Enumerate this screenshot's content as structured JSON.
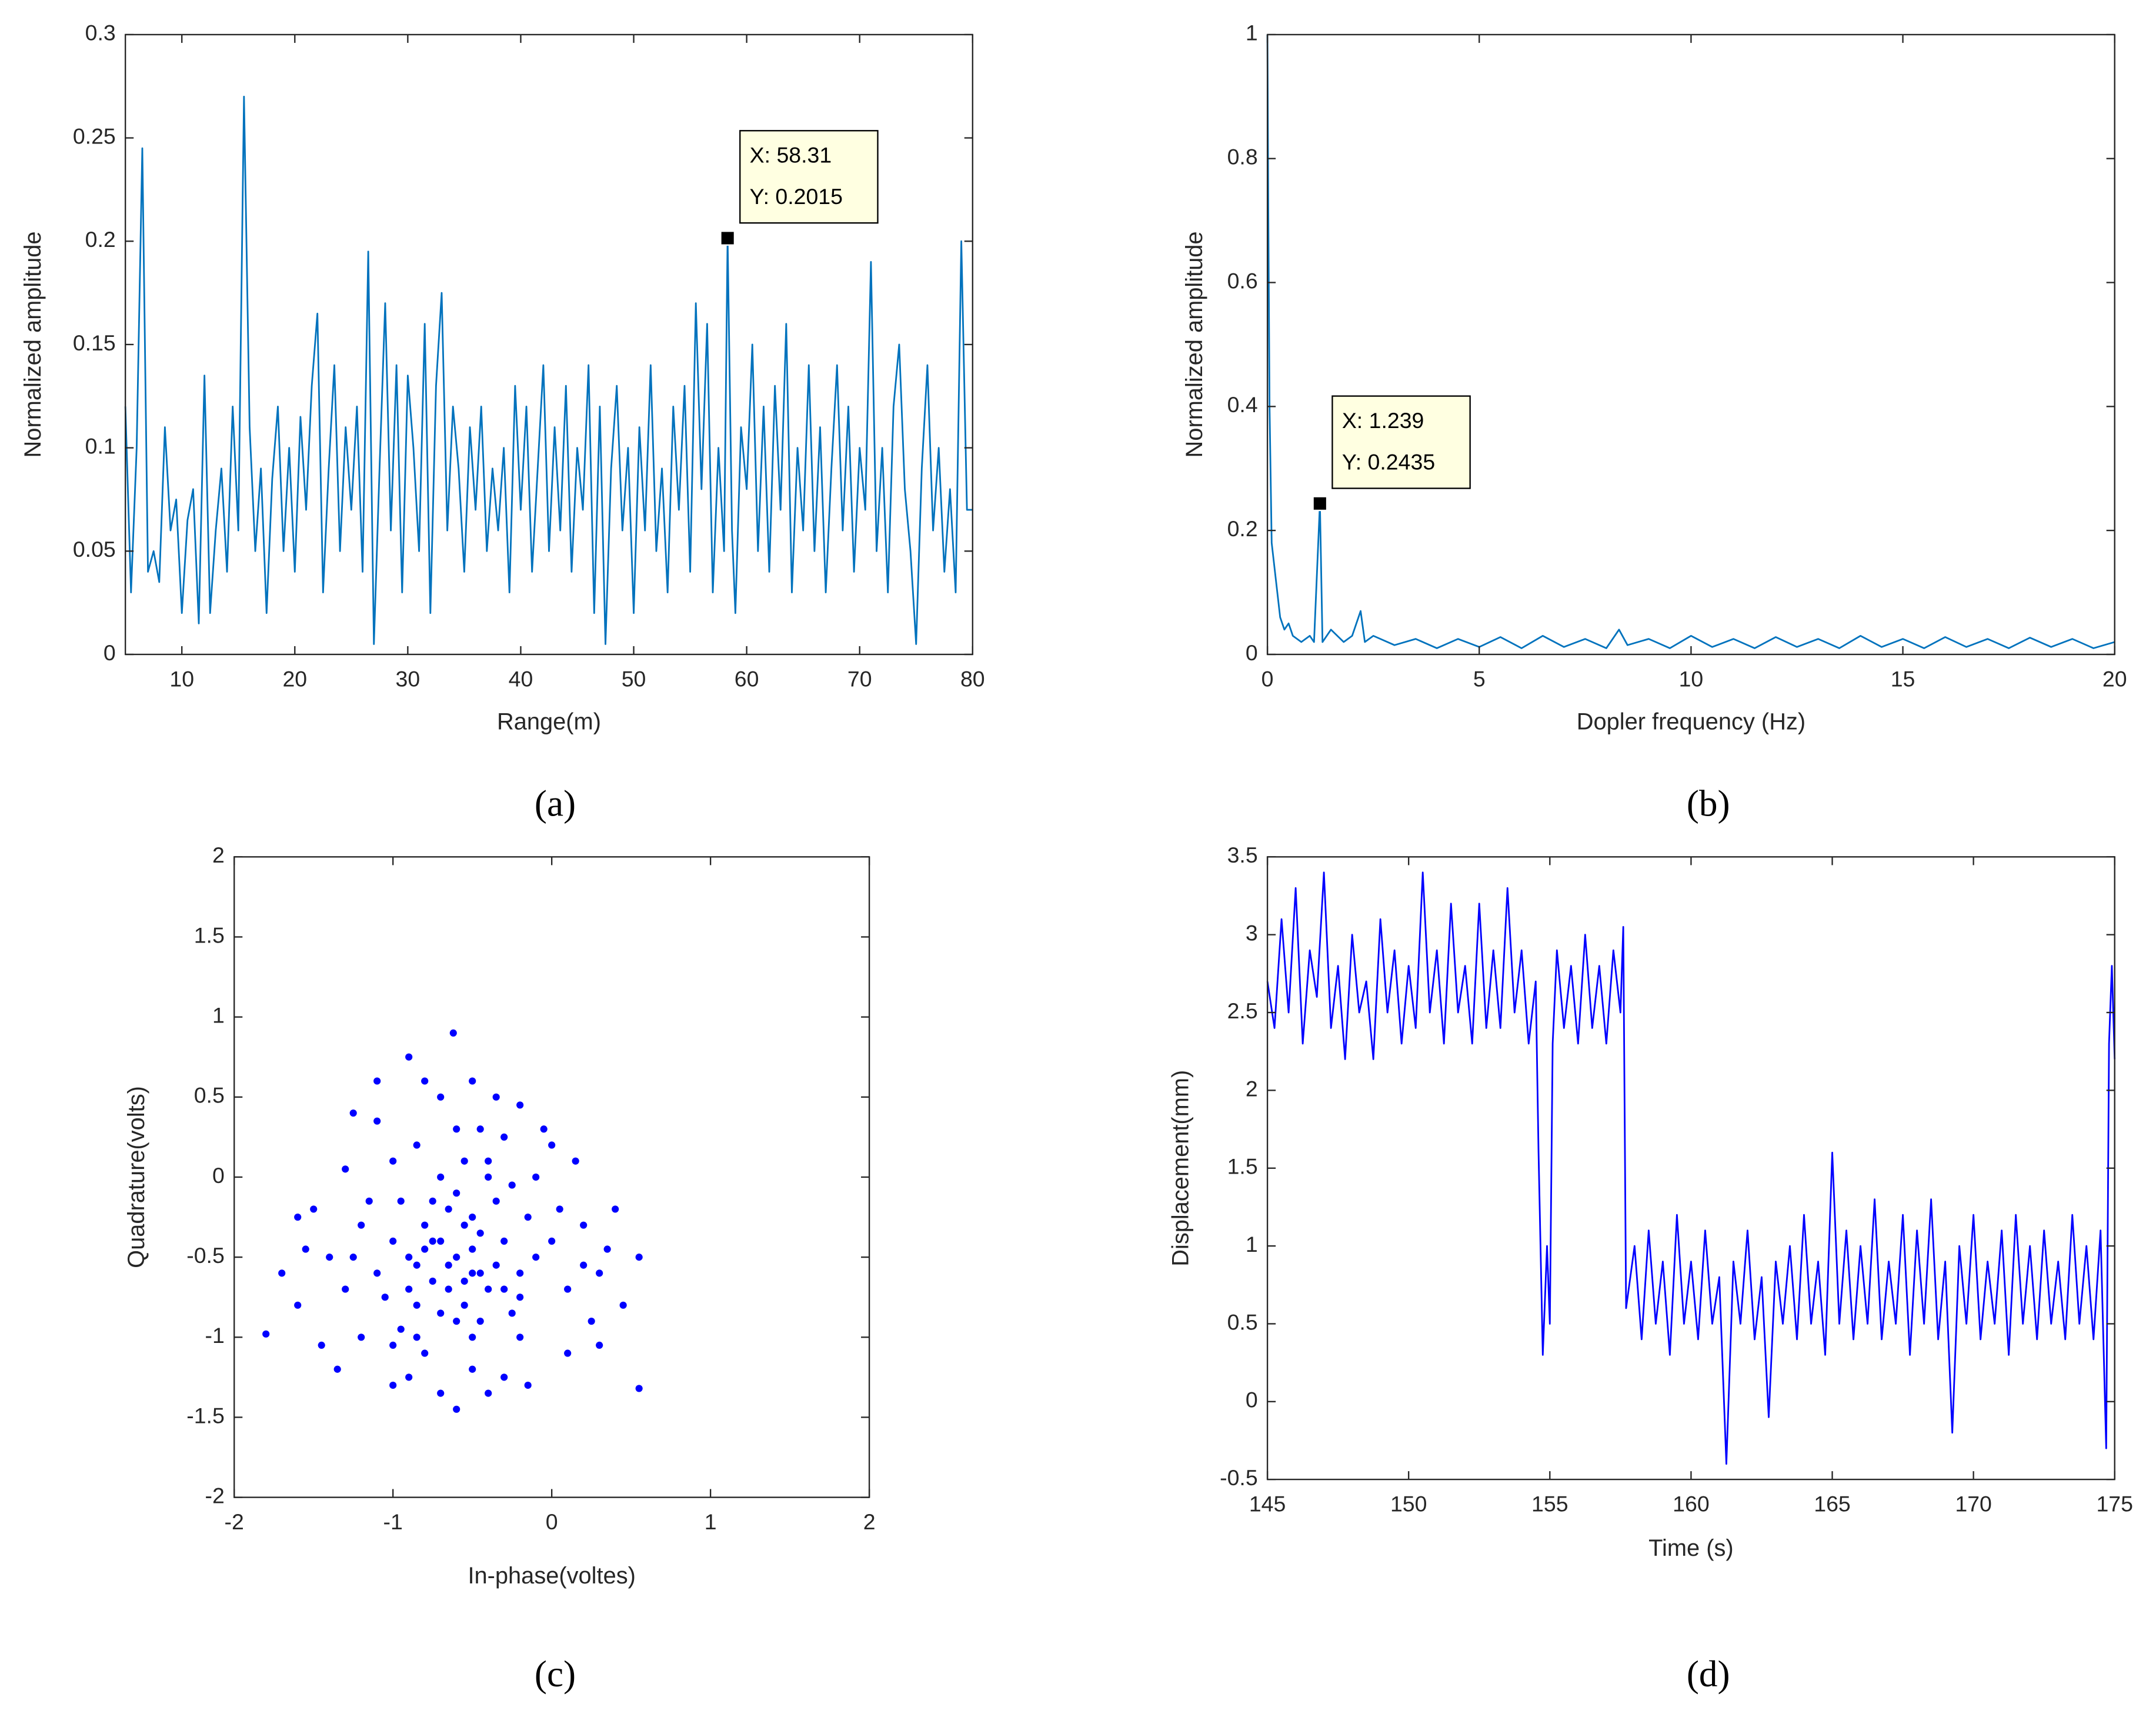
{
  "chart_data": [
    {
      "type": "line",
      "caption": "(a)",
      "xlabel": "Range(m)",
      "ylabel": "Normalized amplitude",
      "color": "#0072bd",
      "xlim": [
        5,
        80
      ],
      "ylim": [
        0,
        0.3
      ],
      "xticks": [
        10,
        20,
        30,
        40,
        50,
        60,
        70,
        80
      ],
      "yticks": [
        0,
        0.05,
        0.1,
        0.15,
        0.2,
        0.25,
        0.3
      ],
      "x": [
        5,
        5.5,
        6,
        6.5,
        7,
        7.5,
        8,
        8.5,
        9,
        9.5,
        10,
        10.5,
        11,
        11.5,
        12,
        12.5,
        13,
        13.5,
        14,
        14.5,
        15,
        15.5,
        16,
        16.5,
        17,
        17.5,
        18,
        18.5,
        19,
        19.5,
        20,
        20.5,
        21,
        21.5,
        22,
        22.5,
        23,
        23.5,
        24,
        24.5,
        25,
        25.5,
        26,
        26.5,
        27,
        27.5,
        28,
        28.5,
        29,
        29.5,
        30,
        30.5,
        31,
        31.5,
        32,
        32.5,
        33,
        33.5,
        34,
        34.5,
        35,
        35.5,
        36,
        36.5,
        37,
        37.5,
        38,
        38.5,
        39,
        39.5,
        40,
        40.5,
        41,
        41.5,
        42,
        42.5,
        43,
        43.5,
        44,
        44.5,
        45,
        45.5,
        46,
        46.5,
        47,
        47.5,
        48,
        48.5,
        49,
        49.5,
        50,
        50.5,
        51,
        51.5,
        52,
        52.5,
        53,
        53.5,
        54,
        54.5,
        55,
        55.5,
        56,
        56.5,
        57,
        57.5,
        58,
        58.31,
        58.7,
        59,
        59.5,
        60,
        60.5,
        61,
        61.5,
        62,
        62.5,
        63,
        63.5,
        64,
        64.5,
        65,
        65.5,
        66,
        66.5,
        67,
        67.5,
        68,
        68.5,
        69,
        69.5,
        70,
        70.5,
        71,
        71.5,
        72,
        72.5,
        73,
        73.5,
        74,
        74.5,
        75,
        75.5,
        76,
        76.5,
        77,
        77.5,
        78,
        78.5,
        79,
        79.5,
        80
      ],
      "values": [
        0.12,
        0.03,
        0.1,
        0.245,
        0.04,
        0.05,
        0.035,
        0.11,
        0.06,
        0.075,
        0.02,
        0.065,
        0.08,
        0.015,
        0.135,
        0.02,
        0.06,
        0.09,
        0.04,
        0.12,
        0.06,
        0.27,
        0.11,
        0.05,
        0.09,
        0.02,
        0.085,
        0.12,
        0.05,
        0.1,
        0.04,
        0.115,
        0.07,
        0.13,
        0.165,
        0.03,
        0.09,
        0.14,
        0.05,
        0.11,
        0.07,
        0.12,
        0.04,
        0.195,
        0.005,
        0.09,
        0.17,
        0.06,
        0.14,
        0.03,
        0.135,
        0.1,
        0.05,
        0.16,
        0.02,
        0.13,
        0.175,
        0.06,
        0.12,
        0.09,
        0.04,
        0.11,
        0.07,
        0.12,
        0.05,
        0.09,
        0.06,
        0.1,
        0.03,
        0.13,
        0.07,
        0.12,
        0.04,
        0.09,
        0.14,
        0.05,
        0.11,
        0.06,
        0.13,
        0.04,
        0.1,
        0.07,
        0.14,
        0.02,
        0.12,
        0.005,
        0.09,
        0.13,
        0.06,
        0.1,
        0.02,
        0.11,
        0.06,
        0.14,
        0.05,
        0.09,
        0.03,
        0.12,
        0.07,
        0.13,
        0.04,
        0.17,
        0.08,
        0.16,
        0.03,
        0.1,
        0.05,
        0.2015,
        0.06,
        0.02,
        0.11,
        0.08,
        0.15,
        0.05,
        0.12,
        0.04,
        0.13,
        0.07,
        0.16,
        0.03,
        0.1,
        0.06,
        0.14,
        0.05,
        0.11,
        0.03,
        0.09,
        0.14,
        0.06,
        0.12,
        0.04,
        0.1,
        0.07,
        0.19,
        0.05,
        0.1,
        0.03,
        0.12,
        0.15,
        0.08,
        0.05,
        0.005,
        0.09,
        0.14,
        0.06,
        0.1,
        0.04,
        0.08,
        0.03,
        0.2,
        0.07,
        0.07
      ],
      "datatip": {
        "x": 58.31,
        "y": 0.2015,
        "labels": [
          "X: 58.31",
          "Y: 0.2015"
        ]
      }
    },
    {
      "type": "line",
      "caption": "(b)",
      "xlabel": "Dopler frequency (Hz)",
      "ylabel": "Normalized amplitude",
      "color": "#0072bd",
      "xlim": [
        0,
        20
      ],
      "ylim": [
        0,
        1
      ],
      "xticks": [
        0,
        5,
        10,
        15,
        20
      ],
      "yticks": [
        0,
        0.2,
        0.4,
        0.6,
        0.8,
        1
      ],
      "x": [
        0,
        0.02,
        0.05,
        0.1,
        0.2,
        0.3,
        0.4,
        0.5,
        0.6,
        0.8,
        1.0,
        1.1,
        1.239,
        1.3,
        1.5,
        1.8,
        2.0,
        2.2,
        2.3,
        2.5,
        3,
        3.5,
        4,
        4.5,
        5,
        5.5,
        6,
        6.5,
        7,
        7.5,
        8,
        8.3,
        8.5,
        9,
        9.5,
        10,
        10.5,
        11,
        11.5,
        12,
        12.5,
        13,
        13.5,
        14,
        14.5,
        15,
        15.5,
        16,
        16.5,
        17,
        17.5,
        18,
        18.5,
        19,
        19.5,
        20
      ],
      "values": [
        1,
        0.72,
        0.4,
        0.18,
        0.12,
        0.06,
        0.04,
        0.05,
        0.03,
        0.02,
        0.03,
        0.02,
        0.2435,
        0.02,
        0.04,
        0.02,
        0.03,
        0.07,
        0.02,
        0.03,
        0.015,
        0.025,
        0.01,
        0.025,
        0.012,
        0.028,
        0.01,
        0.03,
        0.012,
        0.025,
        0.01,
        0.04,
        0.015,
        0.025,
        0.01,
        0.03,
        0.012,
        0.025,
        0.01,
        0.028,
        0.012,
        0.025,
        0.01,
        0.03,
        0.012,
        0.025,
        0.01,
        0.028,
        0.012,
        0.025,
        0.01,
        0.027,
        0.012,
        0.025,
        0.01,
        0.02
      ],
      "datatip": {
        "x": 1.239,
        "y": 0.2435,
        "labels": [
          "X: 1.239",
          "Y: 0.2435"
        ]
      }
    },
    {
      "type": "scatter",
      "caption": "(c)",
      "xlabel": "In-phase(voltes)",
      "ylabel": "Quadrature(volts)",
      "color": "#0000ff",
      "xlim": [
        -2,
        2
      ],
      "ylim": [
        -2,
        2
      ],
      "xticks": [
        -2,
        -1,
        0,
        1,
        2
      ],
      "yticks": [
        -2,
        -1.5,
        -1,
        -0.5,
        0,
        0.5,
        1,
        1.5,
        2
      ],
      "x": [
        -0.6,
        -0.7,
        -0.5,
        -0.8,
        -0.4,
        -0.65,
        -0.55,
        -0.9,
        -0.3,
        -0.75,
        -0.45,
        -1.0,
        -0.2,
        -0.85,
        -0.35,
        -0.7,
        -0.5,
        -1.1,
        -0.1,
        -0.6,
        -0.95,
        -0.25,
        -1.2,
        0.0,
        -0.8,
        -0.4,
        -1.3,
        0.1,
        -0.6,
        -0.5,
        -1.0,
        -0.2,
        -1.4,
        0.2,
        -0.9,
        -0.3,
        -1.5,
        0.3,
        -0.7,
        -0.4,
        -1.2,
        -0.1,
        -1.1,
        0.1,
        -1.6,
        0.4,
        -0.8,
        -0.6,
        -1.3,
        -0.15,
        -1.45,
        0.25,
        -0.5,
        -1.0,
        0.0,
        -1.55,
        0.35,
        -0.9,
        -0.3,
        -1.25,
        0.15,
        -1.7,
        0.45,
        -0.62,
        -0.7,
        -1.1,
        -0.05,
        -1.35,
        0.3,
        -0.35,
        -1.8,
        0.55,
        -1.6,
        -0.45,
        -0.95,
        -0.25,
        -0.55,
        -0.65,
        -0.85,
        -0.35,
        -0.75,
        -0.45,
        -1.05,
        -0.15,
        -0.55,
        -0.85,
        -0.2,
        -1.15,
        -0.4,
        -0.7,
        -0.6,
        -0.5,
        -0.8,
        -0.3,
        -0.9,
        -0.65,
        -0.5,
        -0.45,
        -0.75,
        -0.55,
        0.05,
        0.2,
        -1.25,
        -1.0,
        -0.2,
        -0.85,
        0.55
      ],
      "values": [
        -0.5,
        -0.4,
        -0.6,
        -0.3,
        -0.7,
        -0.2,
        -0.8,
        -0.5,
        -0.4,
        -0.65,
        -0.35,
        -0.4,
        -0.6,
        -0.8,
        -0.15,
        0.0,
        -1.0,
        -0.6,
        -0.5,
        -0.9,
        -0.15,
        -0.85,
        -0.3,
        -0.4,
        -1.1,
        0.1,
        -0.7,
        -0.7,
        0.3,
        -1.2,
        0.1,
        -1.0,
        -0.5,
        -0.3,
        -1.25,
        0.25,
        -0.2,
        -0.6,
        0.5,
        -1.35,
        -1.0,
        0.0,
        0.35,
        -1.1,
        -0.8,
        -0.2,
        0.6,
        -1.45,
        0.05,
        -1.3,
        -1.05,
        -0.9,
        0.6,
        -1.3,
        0.2,
        -0.45,
        -0.45,
        0.75,
        -1.25,
        0.4,
        0.1,
        -0.6,
        -0.8,
        0.9,
        -1.35,
        0.6,
        0.3,
        -1.2,
        -1.05,
        0.5,
        -0.98,
        -0.5,
        -0.25,
        0.3,
        -0.95,
        -0.05,
        -0.3,
        -0.7,
        -0.55,
        -0.55,
        -0.15,
        -0.9,
        -0.75,
        -0.25,
        0.1,
        0.2,
        -0.75,
        -0.15,
        0.0,
        -0.85,
        -0.1,
        -0.45,
        -0.45,
        -0.7,
        -0.7,
        -0.55,
        -0.25,
        -0.6,
        -0.4,
        -0.65,
        -0.2,
        -0.55,
        -0.5,
        -1.05,
        0.45,
        -1.0,
        -1.32
      ]
    },
    {
      "type": "line",
      "caption": "(d)",
      "xlabel": "Time (s)",
      "ylabel": "Displacement(mm)",
      "color": "#0000ff",
      "xlim": [
        145,
        175
      ],
      "ylim": [
        -0.5,
        3.5
      ],
      "xticks": [
        145,
        150,
        155,
        160,
        165,
        170,
        175
      ],
      "yticks": [
        -0.5,
        0,
        0.5,
        1,
        1.5,
        2,
        2.5,
        3,
        3.5
      ],
      "x": [
        145,
        145.25,
        145.5,
        145.75,
        146,
        146.25,
        146.5,
        146.75,
        147,
        147.25,
        147.5,
        147.75,
        148,
        148.25,
        148.5,
        148.75,
        149,
        149.25,
        149.5,
        149.75,
        150,
        150.25,
        150.5,
        150.75,
        151,
        151.25,
        151.5,
        151.75,
        152,
        152.25,
        152.5,
        152.75,
        153,
        153.25,
        153.5,
        153.75,
        154,
        154.25,
        154.5,
        154.6,
        154.75,
        154.9,
        155,
        155.1,
        155.25,
        155.5,
        155.75,
        156,
        156.25,
        156.5,
        156.75,
        157,
        157.25,
        157.5,
        157.6,
        157.7,
        158,
        158.25,
        158.5,
        158.75,
        159,
        159.25,
        159.5,
        159.75,
        160,
        160.25,
        160.5,
        160.75,
        161,
        161.25,
        161.5,
        161.75,
        162,
        162.25,
        162.5,
        162.75,
        163,
        163.25,
        163.5,
        163.75,
        164,
        164.25,
        164.5,
        164.75,
        165,
        165.25,
        165.5,
        165.75,
        166,
        166.25,
        166.5,
        166.75,
        167,
        167.25,
        167.5,
        167.75,
        168,
        168.25,
        168.5,
        168.75,
        169,
        169.25,
        169.5,
        169.75,
        170,
        170.25,
        170.5,
        170.75,
        171,
        171.25,
        171.5,
        171.75,
        172,
        172.25,
        172.5,
        172.75,
        173,
        173.25,
        173.5,
        173.75,
        174,
        174.25,
        174.5,
        174.7,
        174.8,
        174.9,
        175
      ],
      "values": [
        2.7,
        2.4,
        3.1,
        2.5,
        3.3,
        2.3,
        2.9,
        2.6,
        3.4,
        2.4,
        2.8,
        2.2,
        3.0,
        2.5,
        2.7,
        2.2,
        3.1,
        2.5,
        2.9,
        2.3,
        2.8,
        2.4,
        3.4,
        2.5,
        2.9,
        2.3,
        3.2,
        2.5,
        2.8,
        2.3,
        3.2,
        2.4,
        2.9,
        2.4,
        3.3,
        2.5,
        2.9,
        2.3,
        2.7,
        1.6,
        0.3,
        1.0,
        0.5,
        2.3,
        2.9,
        2.4,
        2.8,
        2.3,
        3.0,
        2.4,
        2.8,
        2.3,
        2.9,
        2.5,
        3.05,
        0.6,
        1.0,
        0.4,
        1.1,
        0.5,
        0.9,
        0.3,
        1.2,
        0.5,
        0.9,
        0.4,
        1.1,
        0.5,
        0.8,
        -0.4,
        0.9,
        0.5,
        1.1,
        0.4,
        0.8,
        -0.1,
        0.9,
        0.5,
        1.0,
        0.4,
        1.2,
        0.5,
        0.9,
        0.3,
        1.6,
        0.5,
        1.1,
        0.4,
        1.0,
        0.5,
        1.3,
        0.4,
        0.9,
        0.5,
        1.2,
        0.3,
        1.1,
        0.5,
        1.3,
        0.4,
        0.9,
        -0.2,
        1.0,
        0.5,
        1.2,
        0.4,
        0.9,
        0.5,
        1.1,
        0.3,
        1.2,
        0.5,
        1.0,
        0.4,
        1.1,
        0.5,
        0.9,
        0.4,
        1.2,
        0.5,
        1.0,
        0.4,
        1.1,
        -0.3,
        2.3,
        2.8,
        2.2
      ]
    }
  ]
}
